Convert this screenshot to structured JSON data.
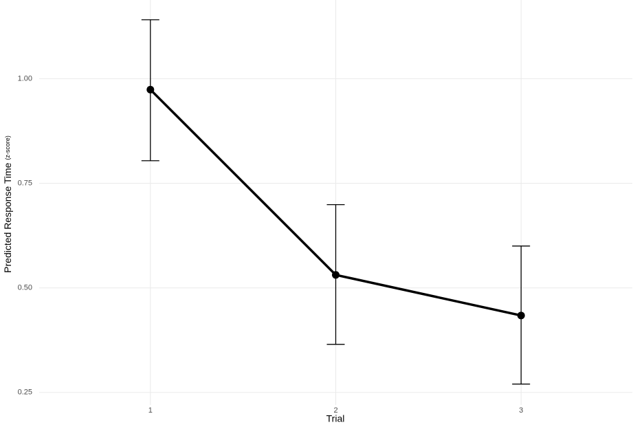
{
  "chart_data": {
    "type": "line",
    "xlabel": "Trial",
    "ylabel": "Predicted Response Time",
    "ylabel_note": "(z-score)",
    "x": [
      1,
      2,
      3
    ],
    "series": [
      {
        "color": "#000000",
        "values": [
          0.974,
          0.531,
          0.434
        ],
        "lower": [
          0.804,
          0.365,
          0.27
        ],
        "upper": [
          1.141,
          0.699,
          0.6
        ]
      }
    ],
    "xlim": [
      0.4,
      3.6
    ],
    "xticks": [
      1,
      2,
      3
    ],
    "ylim": [
      0.22,
      1.18
    ],
    "yticks": [
      {
        "value": 0.25,
        "label": "0.25"
      },
      {
        "value": 0.5,
        "label": "0.50"
      },
      {
        "value": 0.75,
        "label": "0.75"
      },
      {
        "value": 1.0,
        "label": "1.00"
      }
    ],
    "grid": true
  }
}
